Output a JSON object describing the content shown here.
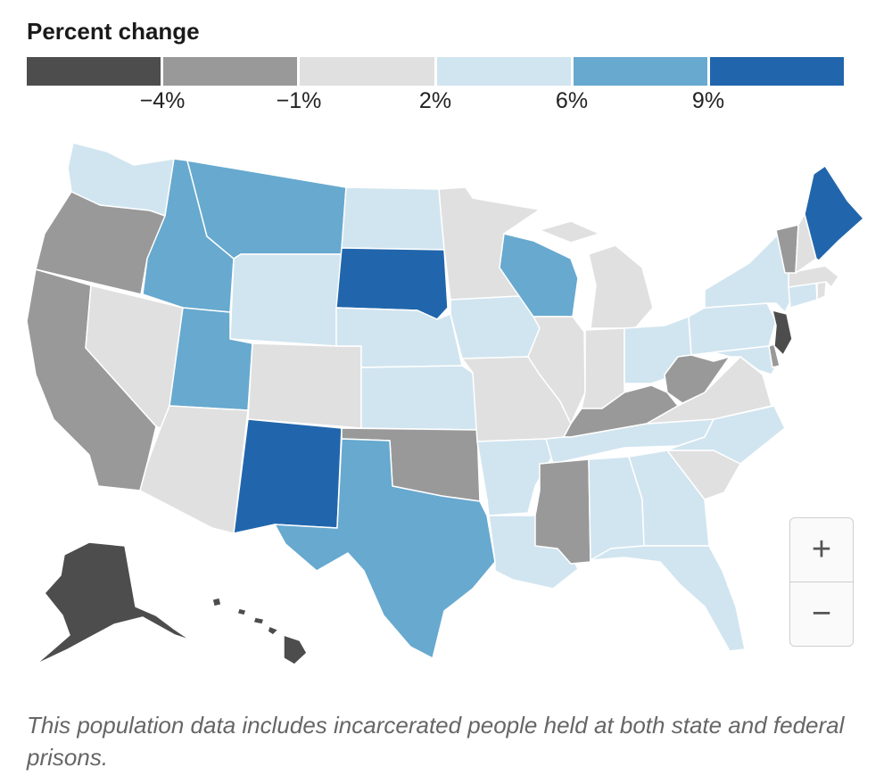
{
  "legend": {
    "title": "Percent change",
    "bins": [
      {
        "color": "#4d4d4d"
      },
      {
        "color": "#999999"
      },
      {
        "color": "#e0e0e0"
      },
      {
        "color": "#d1e5f0"
      },
      {
        "color": "#67a9cf"
      },
      {
        "color": "#2166ac"
      }
    ],
    "ticks": [
      "−4%",
      "−1%",
      "2%",
      "6%",
      "9%"
    ]
  },
  "states": {
    "WA": "#d1e5f0",
    "OR": "#999999",
    "CA": "#999999",
    "NV": "#e0e0e0",
    "ID": "#67a9cf",
    "MT": "#67a9cf",
    "WY": "#d1e5f0",
    "UT": "#67a9cf",
    "AZ": "#e0e0e0",
    "CO": "#e0e0e0",
    "NM": "#2166ac",
    "ND": "#d1e5f0",
    "SD": "#2166ac",
    "NE": "#d1e5f0",
    "KS": "#d1e5f0",
    "OK": "#999999",
    "TX": "#67a9cf",
    "MN": "#e0e0e0",
    "IA": "#d1e5f0",
    "MO": "#e0e0e0",
    "AR": "#d1e5f0",
    "LA": "#d1e5f0",
    "WI": "#67a9cf",
    "IL": "#e0e0e0",
    "MI": "#e0e0e0",
    "IN": "#e0e0e0",
    "OH": "#d1e5f0",
    "KY": "#999999",
    "TN": "#d1e5f0",
    "MS": "#999999",
    "AL": "#d1e5f0",
    "GA": "#d1e5f0",
    "FL": "#d1e5f0",
    "SC": "#e0e0e0",
    "NC": "#d1e5f0",
    "VA": "#e0e0e0",
    "WV": "#999999",
    "PA": "#d1e5f0",
    "NY": "#d1e5f0",
    "VT": "#999999",
    "NH": "#e0e0e0",
    "ME": "#2166ac",
    "MA": "#e0e0e0",
    "CT": "#d1e5f0",
    "RI": "#e0e0e0",
    "NJ": "#4d4d4d",
    "DE": "#999999",
    "MD": "#d1e5f0",
    "AK": "#4d4d4d",
    "HI": "#4d4d4d"
  },
  "zoom": {
    "in_label": "+",
    "out_label": "−"
  },
  "caption": "This population data includes incarcerated people held at both state and federal prisons."
}
